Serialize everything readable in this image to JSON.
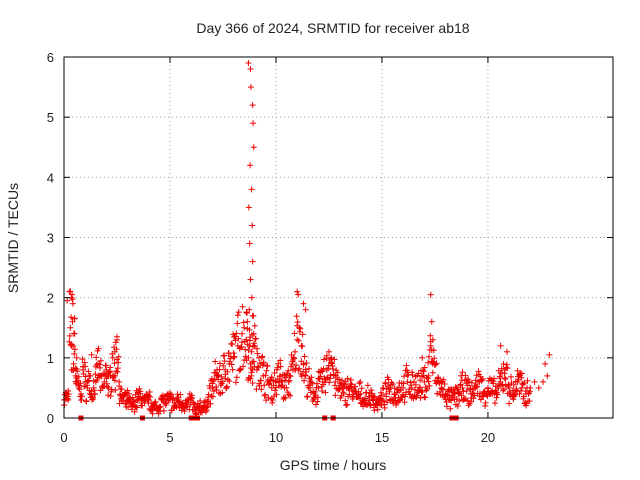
{
  "chart_data": {
    "type": "scatter",
    "title": "Day 366 of 2024, SRMTID for receiver ab18",
    "xlabel": "GPS time / hours",
    "ylabel": "SRMTID / TECUs",
    "xlim": [
      0,
      25.9
    ],
    "ylim": [
      0,
      6
    ],
    "xticks": [
      0,
      5,
      10,
      15,
      20
    ],
    "yticks": [
      0,
      1,
      2,
      3,
      4,
      5,
      6
    ],
    "grid": true,
    "marker": "+",
    "series": [
      {
        "name": "SRMTID",
        "color": "#ee0000",
        "x": [
          0.0,
          0.1,
          0.2,
          0.3,
          0.35,
          0.4,
          0.45,
          0.5,
          0.55,
          0.6,
          0.7,
          0.8,
          0.9,
          1.0,
          1.1,
          1.2,
          1.3,
          1.4,
          1.5,
          1.6,
          1.7,
          1.8,
          1.9,
          2.0,
          2.1,
          2.2,
          2.3,
          2.4,
          2.5,
          2.6,
          2.7,
          2.8,
          2.9,
          3.0,
          3.2,
          3.4,
          3.6,
          3.8,
          4.0,
          4.2,
          4.4,
          4.6,
          4.8,
          5.0,
          5.2,
          5.4,
          5.6,
          5.8,
          6.0,
          6.2,
          6.4,
          6.6,
          6.8,
          7.0,
          7.2,
          7.4,
          7.6,
          7.8,
          8.0,
          8.2,
          8.4,
          8.5,
          8.6,
          8.65,
          8.7,
          8.75,
          8.8,
          8.85,
          8.9,
          8.95,
          9.0,
          9.1,
          9.2,
          9.4,
          9.6,
          9.8,
          10.0,
          10.2,
          10.4,
          10.6,
          10.8,
          10.9,
          11.0,
          11.1,
          11.2,
          11.3,
          11.4,
          11.6,
          11.8,
          12.0,
          12.2,
          12.4,
          12.6,
          12.8,
          13.0,
          13.2,
          13.4,
          13.6,
          13.8,
          14.0,
          14.2,
          14.4,
          14.6,
          14.8,
          15.0,
          15.2,
          15.4,
          15.6,
          15.8,
          16.0,
          16.2,
          16.4,
          16.6,
          16.8,
          17.0,
          17.2,
          17.3,
          17.4,
          17.6,
          17.8,
          18.0,
          18.2,
          18.4,
          18.6,
          18.8,
          19.0,
          19.2,
          19.4,
          19.6,
          19.8,
          20.0,
          20.2,
          20.4,
          20.6,
          20.8,
          21.0,
          21.2,
          21.4,
          21.6,
          21.8,
          22.0,
          22.2,
          22.4,
          22.6,
          22.8,
          0.15,
          0.25,
          0.35,
          0.42,
          0.5,
          0.6,
          0.9,
          1.3,
          2.4,
          2.5,
          8.7,
          8.8,
          8.82,
          8.9,
          8.92,
          8.95,
          8.78,
          8.85,
          8.72,
          8.88,
          8.76,
          8.9,
          8.8,
          8.86,
          8.74,
          8.9,
          11.0,
          11.05,
          11.3,
          11.4,
          12.5,
          16.9,
          17.3,
          17.35,
          17.4,
          20.6,
          20.9,
          22.7,
          22.9
        ],
        "y": [
          0.3,
          0.35,
          0.3,
          1.5,
          1.2,
          1.6,
          0.9,
          1.4,
          0.7,
          0.6,
          0.5,
          0.4,
          0.8,
          0.6,
          0.5,
          0.7,
          0.4,
          0.5,
          0.6,
          0.9,
          0.7,
          0.5,
          0.6,
          0.8,
          0.5,
          0.7,
          1.0,
          0.7,
          1.3,
          0.6,
          0.3,
          0.35,
          0.25,
          0.3,
          0.2,
          0.3,
          0.35,
          0.25,
          0.3,
          0.2,
          0.15,
          0.3,
          0.25,
          0.3,
          0.2,
          0.3,
          0.25,
          0.2,
          0.3,
          0.1,
          0.2,
          0.15,
          0.3,
          0.5,
          0.7,
          0.6,
          0.8,
          0.9,
          1.0,
          1.2,
          1.4,
          1.5,
          1.3,
          1.6,
          1.0,
          1.2,
          0.9,
          1.1,
          0.8,
          1.4,
          1.2,
          0.8,
          1.0,
          0.7,
          0.6,
          0.5,
          0.6,
          0.7,
          0.5,
          0.6,
          0.8,
          1.1,
          1.3,
          1.5,
          1.2,
          0.9,
          0.7,
          0.5,
          0.4,
          0.5,
          0.6,
          0.8,
          1.0,
          0.6,
          0.5,
          0.4,
          0.5,
          0.45,
          0.35,
          0.4,
          0.3,
          0.35,
          0.3,
          0.25,
          0.3,
          0.4,
          0.5,
          0.4,
          0.45,
          0.5,
          0.6,
          0.5,
          0.55,
          0.5,
          0.6,
          0.7,
          1.2,
          0.9,
          0.6,
          0.5,
          0.4,
          0.3,
          0.35,
          0.4,
          0.5,
          0.45,
          0.4,
          0.5,
          0.6,
          0.4,
          0.5,
          0.45,
          0.4,
          0.6,
          0.8,
          0.5,
          0.4,
          0.6,
          0.5,
          0.4,
          0.5,
          0.6,
          0.5,
          0.6,
          0.7,
          1.95,
          2.1,
          2.0,
          1.9,
          1.65,
          1.0,
          0.85,
          1.05,
          1.1,
          1.35,
          5.9,
          5.8,
          5.5,
          5.2,
          4.9,
          4.5,
          4.2,
          3.8,
          3.5,
          3.2,
          2.9,
          2.6,
          2.3,
          2.0,
          1.8,
          1.7,
          2.1,
          2.05,
          1.9,
          1.8,
          1.1,
          1.0,
          2.05,
          1.6,
          1.3,
          1.2,
          1.1,
          0.9,
          1.05
        ]
      }
    ],
    "zero_markers_x": [
      0.8,
      3.7,
      6.0,
      6.1,
      6.3,
      12.3,
      12.7,
      18.3,
      18.5
    ]
  }
}
